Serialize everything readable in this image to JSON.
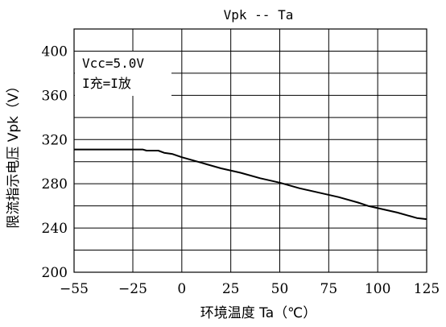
{
  "chart_data": {
    "type": "line",
    "title": "Vpk  --   Ta",
    "xlabel": "环境温度 Ta（℃）",
    "ylabel": "限流指示电压 Vpk（V）",
    "xlim": [
      -55,
      125
    ],
    "ylim": [
      200,
      420
    ],
    "x_ticks": [
      -55,
      -25,
      0,
      25,
      50,
      75,
      100,
      125
    ],
    "y_ticks": [
      200,
      240,
      280,
      320,
      360,
      400
    ],
    "x_tick_labels": [
      "−55",
      "−25",
      "0",
      "25",
      "50",
      "75",
      "100",
      "125"
    ],
    "y_tick_labels": [
      "200",
      "240",
      "280",
      "320",
      "360",
      "400"
    ],
    "grid": true,
    "legend_position": "top-left",
    "annotations": [
      "Vcc=5.0V",
      "I充=I放"
    ],
    "series": [
      {
        "x": [
          -55,
          -20,
          -18,
          -12,
          -9,
          -5,
          0,
          10,
          20,
          30,
          40,
          50,
          60,
          70,
          80,
          90,
          95,
          100,
          110,
          120,
          125
        ],
        "y": [
          311,
          311,
          310,
          310,
          308,
          307,
          304,
          299,
          294,
          290,
          285,
          281,
          276,
          272,
          268,
          263,
          260,
          258,
          254,
          249,
          248
        ]
      }
    ]
  }
}
